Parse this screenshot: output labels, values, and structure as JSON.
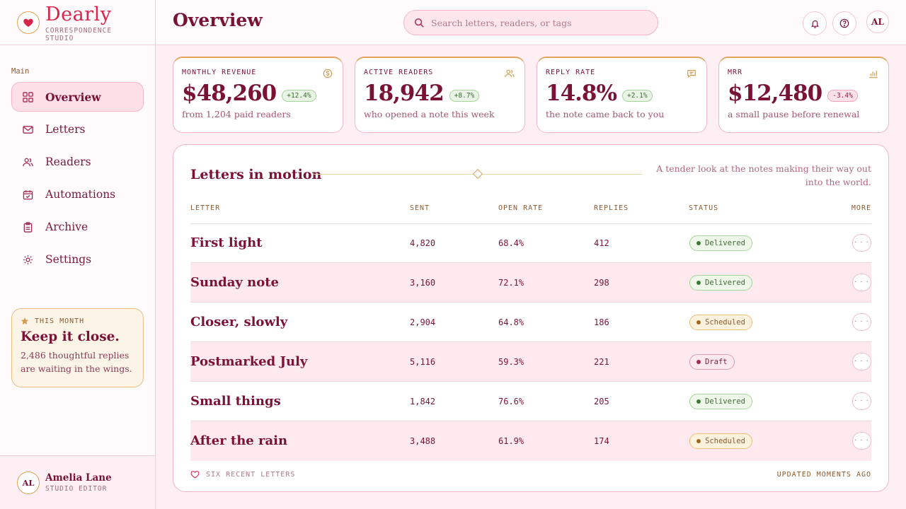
{
  "brand": {
    "name": "Dearly",
    "subtitle": "CORRESPONDENCE STUDIO",
    "logo_icon": "heart-icon"
  },
  "sidebar": {
    "section_title": "Main",
    "items": [
      {
        "label": "Overview",
        "icon": "grid-icon",
        "active": true
      },
      {
        "label": "Letters",
        "icon": "envelope-icon",
        "active": false
      },
      {
        "label": "Readers",
        "icon": "users-icon",
        "active": false
      },
      {
        "label": "Automations",
        "icon": "calendar-check-icon",
        "active": false
      },
      {
        "label": "Archive",
        "icon": "clipboard-icon",
        "active": false
      },
      {
        "label": "Settings",
        "icon": "sun-gear-icon",
        "active": false
      }
    ],
    "month_card": {
      "tag": "THIS MONTH",
      "title": "Keep it close.",
      "text": "2,486 thoughtful replies are waiting in the wings."
    },
    "user": {
      "initials": "AL",
      "name": "Amelia Lane",
      "role": "STUDIO EDITOR"
    }
  },
  "header": {
    "title": "Overview",
    "search_placeholder": "Search letters, readers, or tags",
    "avatar_initials": "AL"
  },
  "stats": [
    {
      "label": "MONTHLY REVENUE",
      "value": "$48,260",
      "delta": "+12.4%",
      "trend": "up",
      "sub": "from 1,204 paid readers",
      "icon": "coin-icon"
    },
    {
      "label": "ACTIVE READERS",
      "value": "18,942",
      "delta": "+8.7%",
      "trend": "up",
      "sub": "who opened a note this week",
      "icon": "users-icon"
    },
    {
      "label": "REPLY RATE",
      "value": "14.8%",
      "delta": "+2.1%",
      "trend": "up",
      "sub": "the note came back to you",
      "icon": "chat-icon"
    },
    {
      "label": "MRR",
      "value": "$12,480",
      "delta": "-3.4%",
      "trend": "down",
      "sub": "a small pause before renewal",
      "icon": "bar-chart-icon"
    }
  ],
  "table": {
    "title": "Letters in motion",
    "description": "A tender look at the notes making their way out into the world.",
    "columns": [
      "LETTER",
      "SENT",
      "OPEN RATE",
      "REPLIES",
      "STATUS",
      "MORE"
    ],
    "rows": [
      {
        "letter": "First light",
        "sent": "4,820",
        "open_rate": "68.4%",
        "replies": "412",
        "status": "Delivered"
      },
      {
        "letter": "Sunday note",
        "sent": "3,160",
        "open_rate": "72.1%",
        "replies": "298",
        "status": "Delivered"
      },
      {
        "letter": "Closer, slowly",
        "sent": "2,904",
        "open_rate": "64.8%",
        "replies": "186",
        "status": "Scheduled"
      },
      {
        "letter": "Postmarked July",
        "sent": "5,116",
        "open_rate": "59.3%",
        "replies": "221",
        "status": "Draft"
      },
      {
        "letter": "Small things",
        "sent": "1,842",
        "open_rate": "76.6%",
        "replies": "205",
        "status": "Delivered"
      },
      {
        "letter": "After the rain",
        "sent": "3,488",
        "open_rate": "61.9%",
        "replies": "174",
        "status": "Scheduled"
      }
    ],
    "more_label": "· · ·",
    "footer_left": "SIX RECENT LETTERS",
    "footer_right": "UPDATED MOMENTS AGO"
  },
  "colors": {
    "accent": "#d6264b",
    "text": "#7a1236",
    "gold": "#e3a35a",
    "background": "#fdeff3"
  }
}
